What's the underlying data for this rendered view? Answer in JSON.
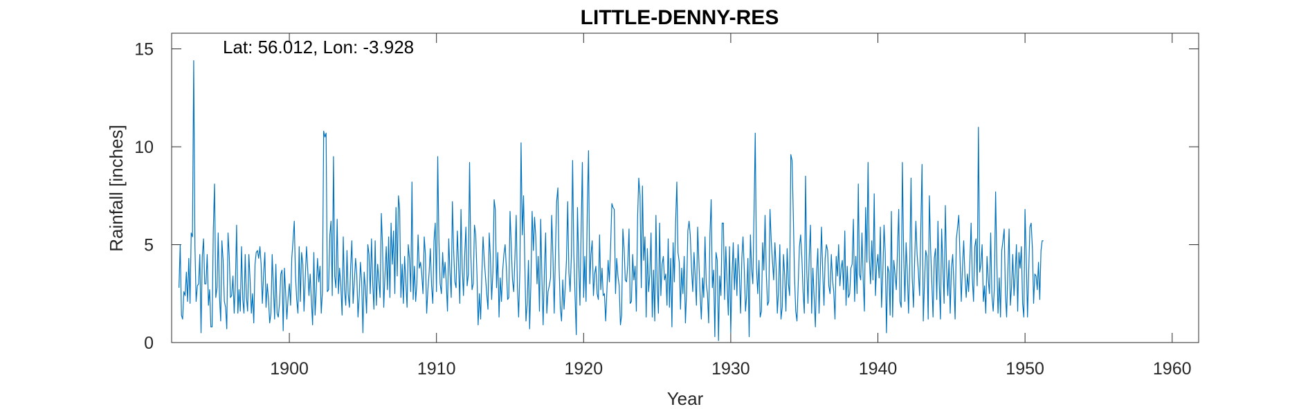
{
  "chart_data": {
    "type": "line",
    "title": "LITTLE-DENNY-RES",
    "xlabel": "Year",
    "ylabel": "Rainfall [inches]",
    "annotation": "Lat: 56.012, Lon: -3.928",
    "xlim": [
      1892,
      1961.8
    ],
    "ylim": [
      0,
      15.8
    ],
    "xticks": [
      1900,
      1910,
      1920,
      1930,
      1940,
      1950,
      1960
    ],
    "yticks": [
      0,
      5,
      10,
      15
    ],
    "grid": false,
    "box": true,
    "series_color": "#0072BD",
    "series": [
      {
        "x_start": 1892.5,
        "x_step": 0.0833333,
        "values": [
          2.8,
          5.0,
          1.4,
          1.2,
          2.6,
          2.4,
          3.6,
          2.1,
          4.3,
          2.0,
          5.6,
          5.4,
          14.4,
          4.9,
          2.1,
          2.9,
          3.0,
          4.5,
          0.5,
          4.4,
          5.3,
          3.0,
          3.0,
          4.5,
          1.9,
          2.7,
          0.8,
          0.8,
          5.7,
          8.1,
          2.3,
          2.8,
          5.6,
          2.4,
          1.1,
          5.2,
          4.2,
          2.1,
          1.8,
          0.7,
          5.6,
          4.4,
          2.3,
          2.4,
          3.4,
          1.5,
          3.0,
          6.0,
          1.5,
          2.7,
          1.6,
          4.9,
          2.2,
          1.5,
          4.5,
          2.3,
          1.6,
          4.5,
          3.2,
          1.5,
          2.5,
          1.0,
          4.0,
          4.6,
          4.7,
          4.3,
          4.9,
          4.0,
          2.0,
          3.5,
          4.6,
          1.8,
          3.0,
          2.2,
          1.0,
          1.5,
          4.5,
          2.8,
          1.2,
          4.0,
          1.5,
          1.3,
          2.0,
          3.5,
          3.7,
          0.6,
          3.8,
          2.5,
          1.2,
          2.3,
          3.0,
          1.9,
          4.3,
          5.2,
          6.2,
          3.5,
          2.2,
          1.5,
          4.9,
          2.1,
          4.6,
          4.0,
          1.6,
          3.3,
          4.9,
          3.7,
          2.4,
          3.5,
          2.1,
          0.9,
          4.6,
          1.4,
          2.8,
          4.3,
          3.1,
          3.9,
          1.5,
          2.6,
          10.8,
          10.5,
          10.7,
          2.6,
          2.7,
          5.5,
          6.2,
          2.4,
          9.5,
          3.4,
          2.8,
          6.3,
          2.5,
          3.8,
          2.9,
          1.4,
          5.4,
          2.7,
          1.9,
          4.7,
          2.5,
          1.8,
          3.9,
          5.2,
          2.0,
          3.1,
          4.3,
          3.5,
          1.3,
          2.4,
          4.1,
          3.1,
          0.5,
          3.6,
          2.8,
          1.5,
          5.0,
          4.5,
          2.5,
          5.3,
          3.0,
          1.7,
          5.2,
          1.9,
          4.0,
          3.2,
          2.3,
          6.6,
          5.0,
          1.8,
          3.5,
          4.9,
          2.7,
          5.4,
          2.3,
          6.1,
          4.0,
          5.7,
          2.5,
          6.9,
          3.4,
          7.5,
          6.8,
          2.3,
          4.0,
          2.0,
          4.4,
          3.1,
          1.8,
          5.0,
          4.3,
          2.6,
          8.2,
          2.2,
          3.9,
          2.1,
          3.0,
          5.5,
          3.8,
          4.1,
          3.5,
          2.5,
          5.4,
          4.5,
          1.5,
          2.7,
          3.6,
          4.8,
          2.9,
          2.0,
          5.2,
          6.1,
          2.6,
          9.5,
          5.2,
          3.0,
          2.5,
          4.6,
          3.3,
          4.1,
          3.0,
          1.6,
          5.3,
          3.6,
          2.3,
          7.2,
          4.7,
          3.1,
          2.8,
          5.7,
          4.0,
          2.0,
          6.8,
          3.8,
          2.4,
          4.4,
          5.9,
          2.9,
          3.5,
          9.2,
          4.5,
          2.7,
          3.0,
          6.0,
          5.5,
          3.5,
          0.9,
          2.5,
          1.2,
          3.4,
          5.4,
          4.2,
          3.3,
          2.5,
          1.7,
          5.6,
          4.4,
          2.2,
          3.6,
          7.3,
          6.8,
          2.8,
          4.6,
          1.3,
          3.3,
          2.1,
          3.7,
          4.5,
          5.0,
          3.8,
          2.2,
          2.3,
          6.7,
          4.9,
          3.2,
          2.6,
          4.4,
          6.5,
          2.9,
          1.3,
          3.7,
          10.2,
          5.5,
          7.5,
          4.1,
          1.1,
          2.0,
          4.2,
          0.7,
          3.0,
          6.7,
          4.7,
          6.4,
          5.4,
          3.0,
          4.4,
          1.6,
          6.3,
          3.2,
          0.9,
          3.6,
          5.6,
          1.5,
          2.6,
          2.9,
          3.3,
          6.5,
          4.4,
          1.5,
          4.6,
          7.2,
          7.9,
          3.8,
          1.8,
          1.1,
          3.2,
          1.7,
          2.8,
          4.2,
          7.2,
          3.6,
          2.6,
          4.4,
          9.3,
          4.6,
          2.4,
          0.4,
          6.9,
          4.1,
          1.9,
          5.9,
          9.2,
          2.3,
          4.4,
          2.1,
          6.8,
          9.8,
          3.0,
          4.5,
          5.2,
          2.4,
          3.5,
          3.9,
          2.5,
          2.2,
          5.5,
          2.7,
          3.8,
          2.4,
          2.5,
          1.1,
          2.7,
          4.2,
          3.1,
          4.9,
          7.1,
          6.9,
          6.8,
          2.5,
          4.3,
          3.4,
          2.9,
          0.9,
          1.4,
          5.8,
          4.8,
          3.2,
          3.1,
          4.0,
          5.8,
          2.0,
          2.1,
          4.5,
          3.2,
          3.9,
          1.6,
          6.4,
          8.4,
          7.5,
          2.8,
          8.0,
          4.2,
          5.4,
          1.3,
          4.8,
          2.6,
          3.5,
          5.6,
          1.3,
          3.7,
          1.1,
          6.5,
          3.0,
          1.5,
          6.1,
          2.4,
          4.0,
          4.4,
          3.2,
          3.5,
          1.9,
          5.3,
          1.8,
          4.3,
          0.8,
          5.1,
          3.1,
          6.1,
          8.2,
          4.6,
          4.1,
          1.7,
          3.8,
          2.5,
          4.4,
          1.0,
          2.6,
          5.7,
          6.2,
          5.5,
          3.8,
          2.6,
          4.6,
          3.4,
          1.9,
          5.9,
          4.2,
          2.5,
          1.2,
          3.3,
          2.3,
          5.4,
          3.0,
          2.5,
          1.0,
          5.5,
          7.3,
          2.8,
          3.7,
          0.3,
          4.6,
          4.2,
          0.1,
          3.4,
          2.4,
          6.1,
          6.1,
          2.2,
          4.9,
          3.0,
          1.4,
          4.9,
          0.5,
          3.4,
          5.1,
          2.7,
          4.3,
          2.4,
          5.0,
          3.5,
          1.5,
          4.3,
          5.4,
          3.8,
          1.6,
          2.4,
          4.3,
          0.3,
          5.5,
          3.8,
          3.0,
          6.7,
          10.7,
          3.8,
          2.5,
          4.2,
          1.3,
          1.6,
          5.1,
          3.7,
          6.5,
          3.5,
          1.9,
          2.1,
          6.8,
          5.2,
          4.2,
          3.2,
          5.1,
          3.8,
          1.5,
          2.7,
          5.0,
          1.2,
          1.8,
          4.5,
          3.4,
          1.6,
          4.8,
          3.0,
          2.4,
          9.6,
          9.3,
          6.5,
          3.4,
          1.6,
          1.1,
          3.0,
          4.9,
          5.5,
          4.3,
          2.6,
          1.5,
          8.5,
          3.6,
          2.0,
          4.4,
          6.0,
          1.5,
          3.8,
          2.3,
          0.8,
          3.5,
          4.8,
          1.5,
          3.5,
          5.9,
          3.6,
          1.9,
          4.3,
          5.0,
          4.7,
          2.9,
          2.5,
          4.5,
          3.2,
          2.6,
          1.2,
          4.4,
          3.4,
          5.0,
          2.9,
          3.8,
          4.2,
          2.7,
          5.7,
          1.9,
          3.9,
          2.3,
          2.5,
          3.8,
          4.0,
          6.3,
          2.1,
          4.4,
          2.5,
          8.1,
          3.5,
          3.2,
          5.6,
          3.2,
          1.6,
          6.9,
          4.1,
          9.2,
          4.3,
          3.0,
          5.2,
          3.2,
          7.6,
          2.4,
          3.9,
          4.5,
          3.3,
          5.9,
          1.8,
          3.5,
          6.0,
          4.6,
          0.5,
          3.9,
          3.6,
          1.4,
          6.7,
          1.3,
          4.2,
          3.5,
          2.7,
          4.8,
          6.8,
          2.1,
          1.8,
          9.2,
          4.6,
          2.1,
          5.1,
          3.6,
          1.5,
          4.1,
          8.4,
          3.3,
          1.8,
          4.3,
          6.2,
          4.5,
          3.6,
          2.4,
          5.8,
          9.1,
          1.1,
          3.0,
          4.7,
          4.4,
          1.2,
          7.5,
          4.8,
          3.0,
          1.3,
          4.3,
          4.8,
          2.2,
          6.2,
          3.1,
          1.2,
          5.8,
          3.9,
          2.0,
          7.0,
          3.9,
          2.4,
          4.2,
          1.5,
          3.8,
          4.5,
          2.9,
          1.2,
          5.3,
          5.9,
          6.5,
          4.3,
          2.1,
          3.9,
          5.2,
          3.4,
          2.3,
          3.5,
          2.6,
          4.1,
          6.1,
          3.3,
          2.1,
          4.9,
          5.3,
          2.9,
          11.0,
          3.6,
          4.0,
          5.0,
          2.1,
          2.9,
          1.5,
          4.4,
          3.2,
          2.5,
          5.6,
          2.4,
          1.6,
          2.8,
          7.7,
          4.0,
          1.5,
          3.3,
          1.3,
          4.7,
          5.2,
          5.8,
          2.5,
          1.3,
          3.7,
          5.8,
          1.9,
          2.8,
          4.5,
          2.4,
          3.5,
          5.0,
          1.6,
          4.6,
          3.8,
          4.9,
          2.0,
          1.3,
          6.8,
          4.3,
          1.3,
          3.6,
          5.9,
          6.1,
          4.8,
          2.0,
          3.5,
          3.4,
          2.7,
          4.1,
          2.2,
          4.7,
          5.2,
          5.2
        ]
      }
    ]
  }
}
